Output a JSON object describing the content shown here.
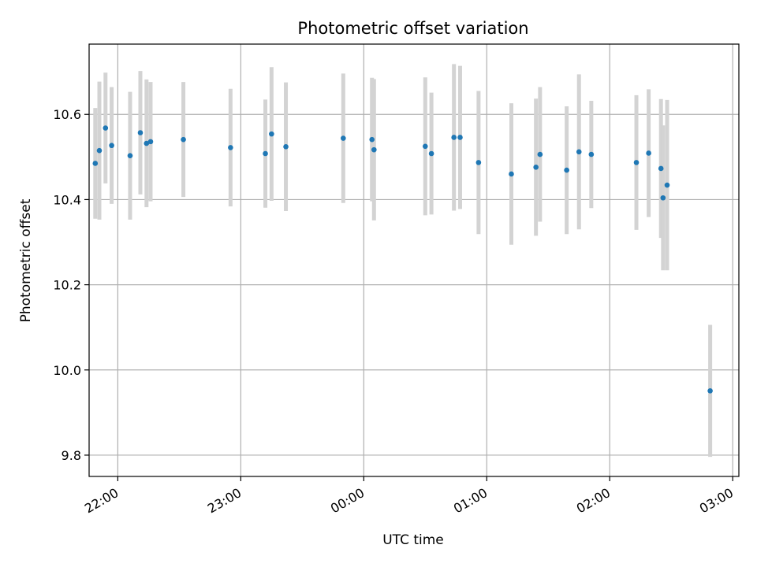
{
  "chart_data": {
    "type": "scatter",
    "title": "Photometric offset variation",
    "xlabel": "UTC time",
    "ylabel": "Photometric offset",
    "x_ticks": [
      "22:00",
      "23:00",
      "00:00",
      "01:00",
      "02:00",
      "03:00"
    ],
    "y_ticks": [
      "9.8",
      "10.0",
      "10.2",
      "10.4",
      "10.6"
    ],
    "xlim": [
      "21:46",
      "03:03"
    ],
    "ylim": [
      9.75,
      10.765
    ],
    "grid": true,
    "legend": "none",
    "colors": {
      "point": "#1f77b4",
      "errorbar": "#d3d3d3",
      "grid": "#b0b0b0"
    },
    "points": [
      {
        "t": "21:49",
        "y": 10.485,
        "err": 0.13
      },
      {
        "t": "21:51",
        "y": 10.515,
        "err": 0.162
      },
      {
        "t": "21:54",
        "y": 10.568,
        "err": 0.13
      },
      {
        "t": "21:57",
        "y": 10.527,
        "err": 0.137
      },
      {
        "t": "22:06",
        "y": 10.503,
        "err": 0.15
      },
      {
        "t": "22:11",
        "y": 10.557,
        "err": 0.145
      },
      {
        "t": "22:14",
        "y": 10.532,
        "err": 0.15
      },
      {
        "t": "22:16",
        "y": 10.536,
        "err": 0.14
      },
      {
        "t": "22:32",
        "y": 10.541,
        "err": 0.135
      },
      {
        "t": "22:55",
        "y": 10.522,
        "err": 0.138
      },
      {
        "t": "23:12",
        "y": 10.508,
        "err": 0.127
      },
      {
        "t": "23:15",
        "y": 10.554,
        "err": 0.157
      },
      {
        "t": "23:22",
        "y": 10.524,
        "err": 0.151
      },
      {
        "t": "23:50",
        "y": 10.544,
        "err": 0.152
      },
      {
        "t": "00:04",
        "y": 10.541,
        "err": 0.145
      },
      {
        "t": "00:05",
        "y": 10.517,
        "err": 0.166
      },
      {
        "t": "00:30",
        "y": 10.525,
        "err": 0.162
      },
      {
        "t": "00:33",
        "y": 10.508,
        "err": 0.143
      },
      {
        "t": "00:44",
        "y": 10.546,
        "err": 0.172
      },
      {
        "t": "00:47",
        "y": 10.546,
        "err": 0.168
      },
      {
        "t": "00:56",
        "y": 10.487,
        "err": 0.168
      },
      {
        "t": "01:12",
        "y": 10.46,
        "err": 0.166
      },
      {
        "t": "01:24",
        "y": 10.476,
        "err": 0.161
      },
      {
        "t": "01:26",
        "y": 10.506,
        "err": 0.158
      },
      {
        "t": "01:39",
        "y": 10.469,
        "err": 0.15
      },
      {
        "t": "01:45",
        "y": 10.512,
        "err": 0.182
      },
      {
        "t": "01:51",
        "y": 10.506,
        "err": 0.126
      },
      {
        "t": "02:13",
        "y": 10.487,
        "err": 0.158
      },
      {
        "t": "02:19",
        "y": 10.509,
        "err": 0.15
      },
      {
        "t": "02:25",
        "y": 10.473,
        "err": 0.163
      },
      {
        "t": "02:26",
        "y": 10.404,
        "err": 0.17
      },
      {
        "t": "02:28",
        "y": 10.434,
        "err": 0.2
      },
      {
        "t": "02:49",
        "y": 9.951,
        "err": 0.155
      }
    ]
  }
}
